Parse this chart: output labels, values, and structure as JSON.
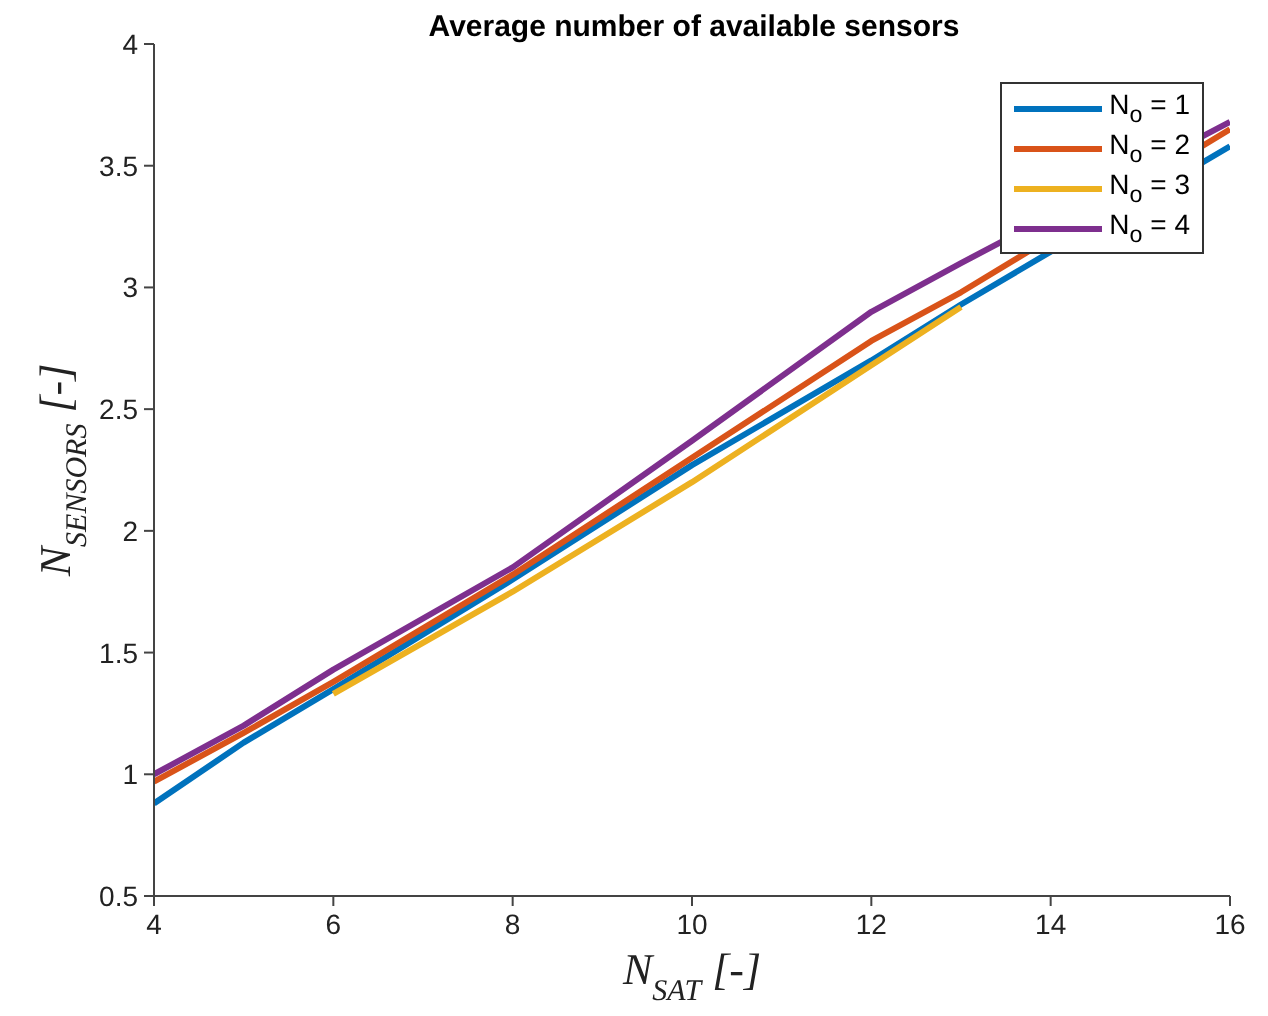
{
  "chart_data": {
    "type": "line",
    "title": "Average number of available sensors",
    "xlabel": "N$_{SAT}$ [-]",
    "ylabel": "N$_{SENSORS}$ [-]",
    "x": [
      4,
      5,
      6,
      8,
      10,
      12,
      13,
      16
    ],
    "series": [
      {
        "name": "N$_{o}$ = 1",
        "color": "#0072bd",
        "values": [
          0.88,
          1.13,
          1.35,
          1.8,
          2.27,
          2.7,
          2.93,
          3.58
        ]
      },
      {
        "name": "N$_{o}$ = 2",
        "color": "#d95319",
        "values": [
          0.97,
          1.17,
          1.38,
          1.82,
          2.3,
          2.78,
          2.98,
          3.65
        ]
      },
      {
        "name": "N$_{o}$ = 3",
        "color": "#edb120",
        "values": [
          null,
          null,
          1.33,
          1.75,
          2.2,
          2.68,
          2.92,
          null
        ]
      },
      {
        "name": "N$_{o}$ = 4",
        "color": "#7e2f8e",
        "values": [
          1.0,
          1.2,
          1.43,
          1.85,
          2.37,
          2.9,
          3.1,
          3.68
        ]
      }
    ],
    "xlim": [
      4,
      16
    ],
    "xticks": [
      4,
      6,
      8,
      10,
      12,
      14,
      16
    ],
    "ylim": [
      0.5,
      4
    ],
    "yticks": [
      0.5,
      1,
      1.5,
      2,
      2.5,
      3,
      3.5,
      4
    ],
    "legend": "top right",
    "marker": "none",
    "line_style": "solid"
  }
}
